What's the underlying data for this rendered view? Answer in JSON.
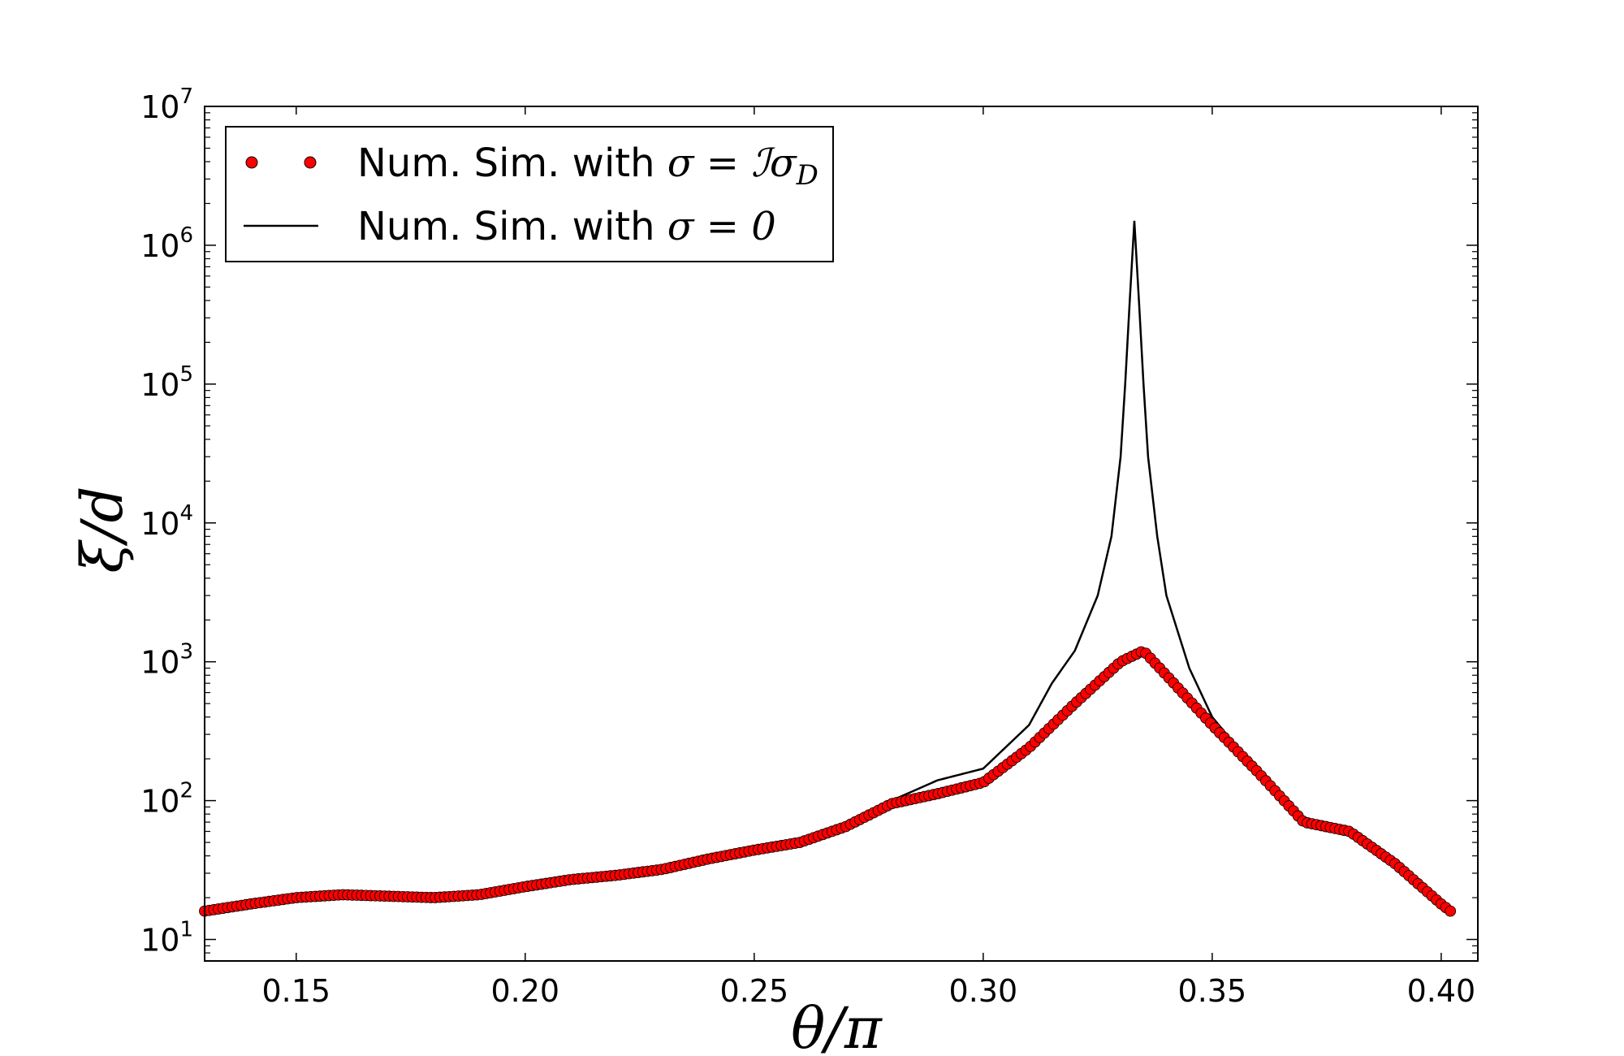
{
  "chart_data": {
    "type": "line",
    "title": "",
    "xlabel": "θ/π",
    "ylabel": "ξ/d",
    "xlim": [
      0.13,
      0.408
    ],
    "ylim": [
      7,
      10000000
    ],
    "yscale": "log",
    "grid": false,
    "legend_position": "top-left",
    "x_ticks": [
      {
        "value": 0.15,
        "label": "0.15"
      },
      {
        "value": 0.2,
        "label": "0.20"
      },
      {
        "value": 0.25,
        "label": "0.25"
      },
      {
        "value": 0.3,
        "label": "0.30"
      },
      {
        "value": 0.35,
        "label": "0.35"
      },
      {
        "value": 0.4,
        "label": "0.40"
      }
    ],
    "y_ticks": [
      {
        "value": 10,
        "base": "10",
        "exp": "1"
      },
      {
        "value": 100,
        "base": "10",
        "exp": "2"
      },
      {
        "value": 1000,
        "base": "10",
        "exp": "3"
      },
      {
        "value": 10000,
        "base": "10",
        "exp": "4"
      },
      {
        "value": 100000,
        "base": "10",
        "exp": "5"
      },
      {
        "value": 1000000,
        "base": "10",
        "exp": "6"
      },
      {
        "value": 10000000,
        "base": "10",
        "exp": "7"
      }
    ],
    "series": [
      {
        "name": "Num. Sim. with σ = ℐσ_D",
        "legend_prefix": "Num. Sim. with ",
        "legend_math": "σ = ℐσ",
        "legend_sub": "D",
        "style": "markers",
        "color": "#ff0000",
        "x": [
          0.13,
          0.14,
          0.15,
          0.16,
          0.17,
          0.18,
          0.19,
          0.2,
          0.21,
          0.22,
          0.23,
          0.24,
          0.25,
          0.26,
          0.27,
          0.28,
          0.29,
          0.3,
          0.31,
          0.32,
          0.33,
          0.335,
          0.34,
          0.35,
          0.36,
          0.37,
          0.38,
          0.39,
          0.4,
          0.402
        ],
        "y": [
          16,
          18,
          20,
          21,
          20.5,
          20,
          21,
          24,
          27,
          29,
          32,
          38,
          44,
          50,
          65,
          95,
          112,
          135,
          240,
          500,
          1000,
          1200,
          800,
          350,
          160,
          70,
          60,
          35,
          18,
          16
        ]
      },
      {
        "name": "Num. Sim. with σ = 0",
        "legend_prefix": "Num. Sim. with ",
        "legend_math": "σ = 0",
        "legend_sub": "",
        "style": "line",
        "color": "#000000",
        "x": [
          0.13,
          0.14,
          0.15,
          0.16,
          0.17,
          0.18,
          0.19,
          0.2,
          0.21,
          0.22,
          0.23,
          0.24,
          0.25,
          0.26,
          0.27,
          0.28,
          0.29,
          0.3,
          0.31,
          0.315,
          0.32,
          0.325,
          0.328,
          0.33,
          0.331,
          0.332,
          0.333,
          0.334,
          0.335,
          0.336,
          0.338,
          0.34,
          0.345,
          0.35,
          0.36,
          0.37,
          0.38,
          0.39,
          0.4,
          0.402
        ],
        "y": [
          16,
          18,
          20,
          21,
          20.5,
          20,
          21,
          24,
          27,
          29,
          32,
          38,
          44,
          50,
          65,
          100,
          140,
          170,
          350,
          700,
          1200,
          3000,
          8000,
          30000,
          100000,
          400000,
          1500000,
          400000,
          100000,
          30000,
          8000,
          3000,
          900,
          400,
          160,
          75,
          60,
          35,
          18,
          16
        ]
      }
    ]
  }
}
